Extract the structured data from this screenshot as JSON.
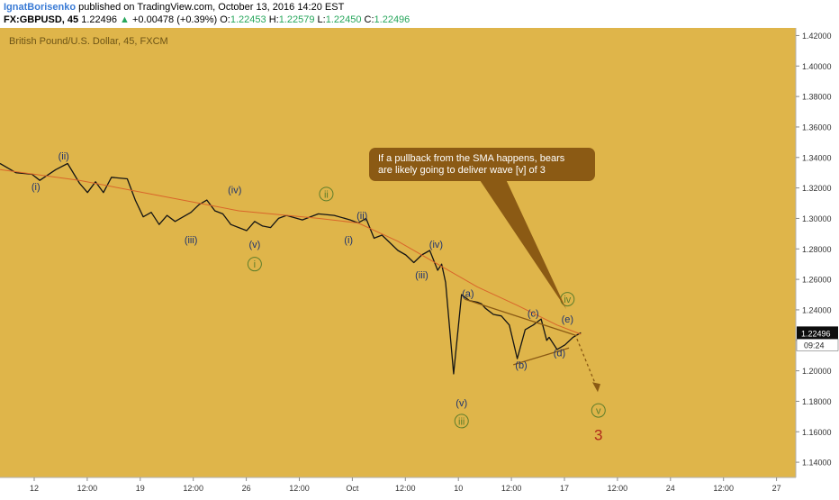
{
  "header": {
    "author": "IgnatBorisenko",
    "published": "published on TradingView.com, October 13, 2016 14:20 EST",
    "symbol": "FX:GBPUSD, 45",
    "last": "1.22496",
    "change": "+0.00478 (+0.39%)",
    "o_label": "O:",
    "o_value": "1.22453",
    "h_label": "H:",
    "h_value": "1.22579",
    "l_label": "L:",
    "l_value": "1.22450",
    "c_label": "C:",
    "c_value": "1.22496"
  },
  "colors": {
    "background": "#dfb54a",
    "price_line": "#141414",
    "sma": "#d9652a",
    "wave_label": "#1d3370",
    "minor_wave_label": "#5d7d2a",
    "big_count": "#b02a1a",
    "callout": "#8b5a14"
  },
  "chart_data": {
    "type": "line",
    "title": "British Pound/U.S. Dollar, 45, FXCM",
    "y_ticks": [
      "1.42000",
      "1.40000",
      "1.38000",
      "1.36000",
      "1.34000",
      "1.32000",
      "1.30000",
      "1.28000",
      "1.26000",
      "1.24000",
      "1.22000",
      "1.20000",
      "1.18000",
      "1.16000",
      "1.14000"
    ],
    "x_ticks": [
      "12",
      "12:00",
      "19",
      "12:00",
      "26",
      "12:00",
      "Oct",
      "12:00",
      "10",
      "12:00",
      "17",
      "12:00",
      "24",
      "12:00",
      "27"
    ],
    "ylim": [
      1.13,
      1.425
    ],
    "xlim": [
      0,
      100
    ],
    "last_price_label": "1.22496",
    "countdown_label": "09:24",
    "series": [
      {
        "name": "",
        "x": [
          0,
          2,
          4,
          5,
          7,
          8.5,
          10,
          11,
          12,
          13,
          14,
          16,
          17,
          18,
          19,
          20,
          21,
          22,
          24,
          25,
          26,
          27,
          28,
          29,
          30,
          31,
          32,
          33,
          34,
          35,
          36,
          38,
          40,
          42,
          44,
          45,
          46,
          47,
          48,
          49,
          50,
          51,
          52,
          53,
          54,
          55,
          55.5,
          56,
          57,
          58,
          59,
          60,
          60.5,
          61,
          62,
          63,
          64,
          65,
          66,
          67,
          68,
          68.7,
          69,
          70,
          71,
          72,
          73
        ],
        "values": [
          1.336,
          1.33,
          1.329,
          1.325,
          1.332,
          1.336,
          1.323,
          1.317,
          1.324,
          1.317,
          1.327,
          1.326,
          1.312,
          1.301,
          1.304,
          1.296,
          1.302,
          1.298,
          1.304,
          1.309,
          1.312,
          1.305,
          1.303,
          1.296,
          1.294,
          1.292,
          1.298,
          1.295,
          1.294,
          1.3,
          1.302,
          1.299,
          1.303,
          1.302,
          1.299,
          1.297,
          1.3,
          1.287,
          1.289,
          1.284,
          1.279,
          1.276,
          1.271,
          1.276,
          1.279,
          1.266,
          1.27,
          1.258,
          1.198,
          1.25,
          1.246,
          1.245,
          1.244,
          1.241,
          1.237,
          1.236,
          1.23,
          1.208,
          1.227,
          1.23,
          1.234,
          1.22,
          1.222,
          1.214,
          1.217,
          1.222,
          1.225
        ]
      },
      {
        "name": "",
        "x": [
          0,
          10,
          20,
          30,
          40,
          45,
          50,
          55,
          60,
          65,
          70,
          73
        ],
        "values": [
          1.332,
          1.325,
          1.315,
          1.305,
          1.3,
          1.297,
          1.285,
          1.27,
          1.255,
          1.243,
          1.23,
          1.224
        ]
      }
    ],
    "wave_labels": [
      {
        "text": "(i)",
        "x": 4.5,
        "y": 1.321,
        "style": "major"
      },
      {
        "text": "(ii)",
        "x": 8,
        "y": 1.341,
        "style": "major"
      },
      {
        "text": "(iii)",
        "x": 24,
        "y": 1.286,
        "style": "major"
      },
      {
        "text": "(iv)",
        "x": 29.5,
        "y": 1.319,
        "style": "major"
      },
      {
        "text": "(v)",
        "x": 32,
        "y": 1.283,
        "style": "major"
      },
      {
        "text": "i",
        "x": 32,
        "y": 1.27,
        "style": "circle"
      },
      {
        "text": "ii",
        "x": 41,
        "y": 1.316,
        "style": "circle"
      },
      {
        "text": "(ii)",
        "x": 45.5,
        "y": 1.302,
        "style": "major"
      },
      {
        "text": "(i)",
        "x": 43.8,
        "y": 1.286,
        "style": "major"
      },
      {
        "text": "(iv)",
        "x": 54.8,
        "y": 1.283,
        "style": "major"
      },
      {
        "text": "(iii)",
        "x": 53,
        "y": 1.263,
        "style": "major"
      },
      {
        "text": "(a)",
        "x": 58.8,
        "y": 1.251,
        "style": "major"
      },
      {
        "text": "(b)",
        "x": 65.5,
        "y": 1.204,
        "style": "major"
      },
      {
        "text": "(c)",
        "x": 67,
        "y": 1.238,
        "style": "major"
      },
      {
        "text": "(d)",
        "x": 70.3,
        "y": 1.212,
        "style": "major"
      },
      {
        "text": "(e)",
        "x": 71.3,
        "y": 1.234,
        "style": "major"
      },
      {
        "text": "iv",
        "x": 71.3,
        "y": 1.247,
        "style": "circle"
      },
      {
        "text": "(v)",
        "x": 58,
        "y": 1.179,
        "style": "major"
      },
      {
        "text": "iii",
        "x": 58,
        "y": 1.167,
        "style": "circle"
      },
      {
        "text": "v",
        "x": 75.2,
        "y": 1.174,
        "style": "circle"
      },
      {
        "text": "3",
        "x": 75.2,
        "y": 1.158,
        "style": "big"
      }
    ],
    "triangle_lines": [
      {
        "x": [
          58.4,
          72.5
        ],
        "values": [
          1.247,
          1.223
        ]
      },
      {
        "x": [
          64.5,
          71.5
        ],
        "values": [
          1.204,
          1.215
        ]
      }
    ],
    "projection": {
      "x": [
        72.5,
        75
      ],
      "values": [
        1.221,
        1.189
      ]
    },
    "callout_text": [
      "If a pullback from the SMA happens, bears",
      "are likely going to deliver wave [v] of 3"
    ],
    "grid": false,
    "legend": "none"
  }
}
